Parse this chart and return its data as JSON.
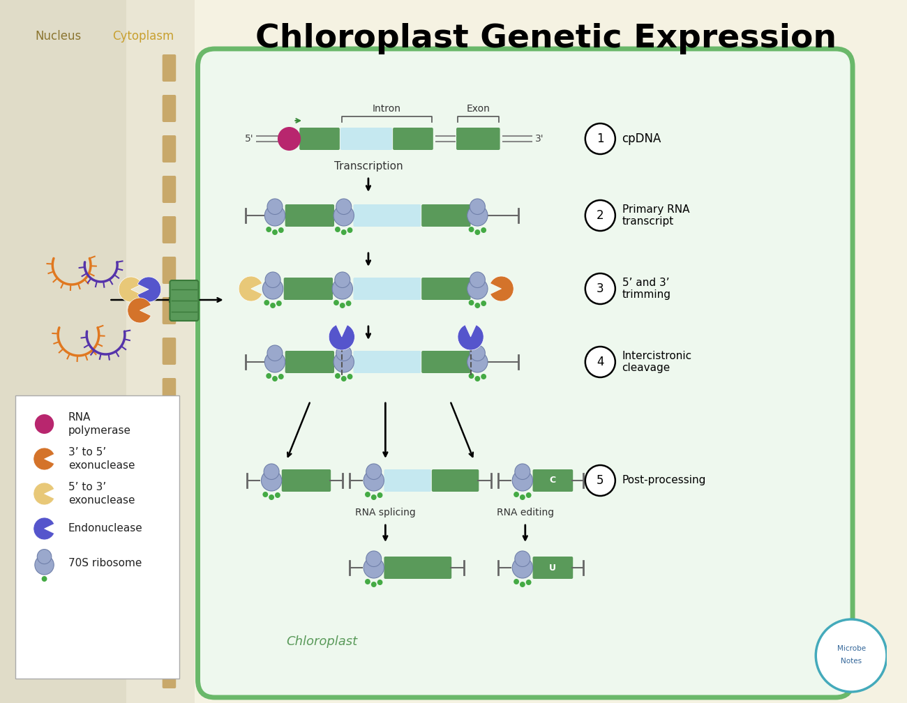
{
  "title": "Chloroplast Genetic Expression",
  "title_fontsize": 34,
  "title_fontweight": "bold",
  "nucleus_bg": "#eae6d4",
  "cytoplasm_bg": "#f2eedc",
  "right_bg": "#f5f2e2",
  "chloroplast_bg": "#eef8ee",
  "chloroplast_border": "#6ab86a",
  "green_box": "#5a9a5a",
  "light_blue_box": "#c5e8f0",
  "rna_poly_color": "#b8266e",
  "exonuclease_35_color": "#d4732a",
  "exonuclease_53_color": "#e8c878",
  "endonuclease_color": "#5555cc",
  "ribosome_color": "#9aa8cc",
  "ribosome_edge": "#7080aa",
  "tRNA_color": "#44aa44",
  "chloroplast_label_color": "#5a9a5a",
  "nucleus_label": "Nucleus",
  "cytoplasm_label": "Cytoplasm",
  "dash_color": "#c8a86a",
  "wall_color": "#b09040",
  "steps": [
    {
      "number": "1",
      "label": "cpDNA"
    },
    {
      "number": "2",
      "label": "Primary RNA\ntranscript"
    },
    {
      "number": "3",
      "label": "5’ and 3’\ntrimming"
    },
    {
      "number": "4",
      "label": "Intercistronic\ncleavage"
    },
    {
      "number": "5",
      "label": "Post-processing"
    }
  ],
  "legend_items": [
    {
      "color": "#b8266e",
      "shape": "circle",
      "label": "RNA\npolymerase"
    },
    {
      "color": "#d4732a",
      "shape": "pacman_right",
      "label": "3’ to 5’\nexonuclease"
    },
    {
      "color": "#e8c878",
      "shape": "pacman_right",
      "label": "5’ to 3’\nexonuclease"
    },
    {
      "color": "#5555cc",
      "shape": "pacman_right",
      "label": "Endonuclease"
    },
    {
      "color": "#9aa8cc",
      "shape": "ribosome",
      "label": "70S ribosome"
    }
  ]
}
